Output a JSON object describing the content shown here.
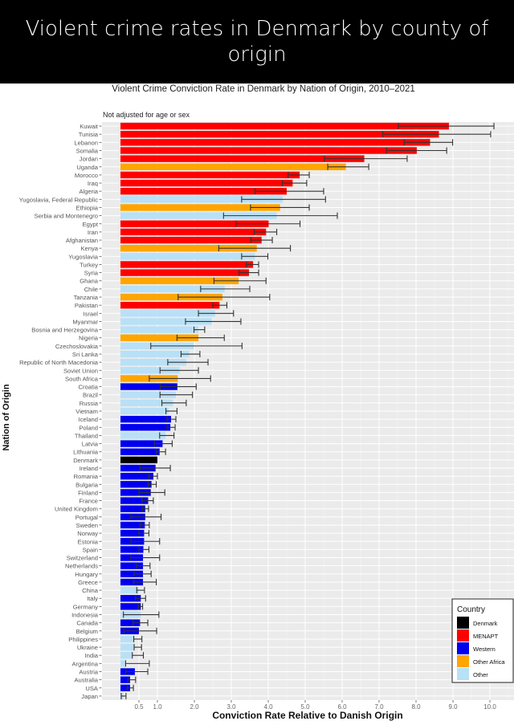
{
  "header": {
    "title": "Violent crime rates in Denmark by county of origin"
  },
  "chart_data": {
    "type": "bar",
    "orientation": "horizontal",
    "title": "Violent Crime Conviction Rate in Denmark by Nation of Origin, 2010–2021",
    "subtitle": "Not adjusted for age or sex",
    "xlabel": "Conviction Rate Relative to Danish Origin",
    "ylabel": "Nation of Origin",
    "xticks": [
      0.5,
      1.0,
      2.0,
      3.0,
      4.0,
      5.0,
      6.0,
      7.0,
      8.0,
      9.0,
      10.0
    ],
    "xtick_labels": [
      "0.5",
      "1.0",
      "2.0",
      "3.0",
      "4.0",
      "5.0",
      "6.0",
      "7.0",
      "8.0",
      "9.0",
      "10.0"
    ],
    "xlim": [
      -0.5,
      10.65
    ],
    "grid": true,
    "error_bars": true,
    "legend": {
      "title": "Country",
      "placement": "bottom-right",
      "entries": [
        {
          "name": "Denmark",
          "color": "#000000"
        },
        {
          "name": "MENAPT",
          "color": "#ff0000"
        },
        {
          "name": "Western",
          "color": "#0000ee"
        },
        {
          "name": "Other Africa",
          "color": "#ffa500"
        },
        {
          "name": "Other",
          "color": "#b8e0f6"
        }
      ]
    },
    "data": [
      {
        "country": "Kuwait",
        "group": "MENAPT",
        "value": 8.89,
        "low": 7.52,
        "high": 10.11
      },
      {
        "country": "Tunisia",
        "group": "MENAPT",
        "value": 8.62,
        "low": 7.1,
        "high": 10.02
      },
      {
        "country": "Lebanon",
        "group": "MENAPT",
        "value": 8.38,
        "low": 7.68,
        "high": 8.99
      },
      {
        "country": "Somalia",
        "group": "MENAPT",
        "value": 8.02,
        "low": 7.2,
        "high": 8.83
      },
      {
        "country": "Jordan",
        "group": "MENAPT",
        "value": 6.6,
        "low": 5.52,
        "high": 7.76
      },
      {
        "country": "Uganda",
        "group": "Other Africa",
        "value": 6.1,
        "low": 5.61,
        "high": 6.72
      },
      {
        "country": "Morocco",
        "group": "MENAPT",
        "value": 4.85,
        "low": 4.54,
        "high": 5.11
      },
      {
        "country": "Iraq",
        "group": "MENAPT",
        "value": 4.66,
        "low": 4.38,
        "high": 5.04
      },
      {
        "country": "Algeria",
        "group": "MENAPT",
        "value": 4.5,
        "low": 3.64,
        "high": 5.5
      },
      {
        "country": "Yugoslavia, Federal Republic",
        "group": "Other",
        "value": 4.39,
        "low": 3.28,
        "high": 5.55
      },
      {
        "country": "Ethiopia",
        "group": "Other Africa",
        "value": 4.32,
        "low": 3.52,
        "high": 5.11
      },
      {
        "country": "Serbia and Montenegro",
        "group": "Other",
        "value": 4.23,
        "low": 2.79,
        "high": 5.87
      },
      {
        "country": "Egypt",
        "group": "MENAPT",
        "value": 4.01,
        "low": 3.13,
        "high": 4.86
      },
      {
        "country": "Iran",
        "group": "MENAPT",
        "value": 3.94,
        "low": 3.62,
        "high": 4.23
      },
      {
        "country": "Afghanistan",
        "group": "MENAPT",
        "value": 3.82,
        "low": 3.53,
        "high": 4.11
      },
      {
        "country": "Kenya",
        "group": "Other Africa",
        "value": 3.69,
        "low": 2.66,
        "high": 4.6
      },
      {
        "country": "Yugoslavia",
        "group": "Other",
        "value": 3.64,
        "low": 3.28,
        "high": 3.99
      },
      {
        "country": "Turkey",
        "group": "MENAPT",
        "value": 3.59,
        "low": 3.41,
        "high": 3.74
      },
      {
        "country": "Syria",
        "group": "MENAPT",
        "value": 3.48,
        "low": 3.21,
        "high": 3.74
      },
      {
        "country": "Ghana",
        "group": "Other Africa",
        "value": 3.2,
        "low": 2.53,
        "high": 3.94
      },
      {
        "country": "Chile",
        "group": "Other",
        "value": 2.82,
        "low": 2.17,
        "high": 3.5
      },
      {
        "country": "Tanzania",
        "group": "Other Africa",
        "value": 2.76,
        "low": 1.56,
        "high": 4.04
      },
      {
        "country": "Pakistan",
        "group": "MENAPT",
        "value": 2.68,
        "low": 2.5,
        "high": 2.88
      },
      {
        "country": "Israel",
        "group": "Other",
        "value": 2.56,
        "low": 2.11,
        "high": 3.06
      },
      {
        "country": "Myanmar",
        "group": "Other",
        "value": 2.47,
        "low": 1.76,
        "high": 3.26
      },
      {
        "country": "Bosnia and Herzegovina",
        "group": "Other",
        "value": 2.11,
        "low": 1.99,
        "high": 2.28
      },
      {
        "country": "Nigeria",
        "group": "Other Africa",
        "value": 2.11,
        "low": 1.53,
        "high": 2.81
      },
      {
        "country": "Czechoslovakia",
        "group": "Other",
        "value": 1.99,
        "low": 0.82,
        "high": 3.29
      },
      {
        "country": "Sri Lanka",
        "group": "Other",
        "value": 1.86,
        "low": 1.64,
        "high": 2.15
      },
      {
        "country": "Republic of North Macedonia",
        "group": "Other",
        "value": 1.78,
        "low": 1.28,
        "high": 2.37
      },
      {
        "country": "Soviet Union",
        "group": "Other",
        "value": 1.6,
        "low": 1.07,
        "high": 2.11
      },
      {
        "country": "South Africa",
        "group": "Other Africa",
        "value": 1.55,
        "low": 0.78,
        "high": 2.44
      },
      {
        "country": "Croatia",
        "group": "Western",
        "value": 1.54,
        "low": 1.08,
        "high": 2.05
      },
      {
        "country": "Brazil",
        "group": "Other",
        "value": 1.5,
        "low": 1.07,
        "high": 1.95
      },
      {
        "country": "Russia",
        "group": "Other",
        "value": 1.42,
        "low": 1.12,
        "high": 1.78
      },
      {
        "country": "Vietnam",
        "group": "Other",
        "value": 1.3,
        "low": 1.23,
        "high": 1.53
      },
      {
        "country": "Iceland",
        "group": "Western",
        "value": 1.37,
        "low": 1.26,
        "high": 1.5
      },
      {
        "country": "Poland",
        "group": "Western",
        "value": 1.35,
        "low": 1.26,
        "high": 1.48
      },
      {
        "country": "Thailand",
        "group": "Other",
        "value": 1.22,
        "low": 1.06,
        "high": 1.45
      },
      {
        "country": "Latvia",
        "group": "Western",
        "value": 1.14,
        "low": 0.92,
        "high": 1.4
      },
      {
        "country": "Lithuania",
        "group": "Western",
        "value": 1.06,
        "low": 0.97,
        "high": 1.22
      },
      {
        "country": "Denmark",
        "group": "Denmark",
        "value": 1.0,
        "low": null,
        "high": null
      },
      {
        "country": "Ireland",
        "group": "Western",
        "value": 0.95,
        "low": 0.53,
        "high": 1.35
      },
      {
        "country": "Romania",
        "group": "Western",
        "value": 0.89,
        "low": 0.77,
        "high": 1.0
      },
      {
        "country": "Bulgaria",
        "group": "Western",
        "value": 0.84,
        "low": 0.75,
        "high": 0.97
      },
      {
        "country": "Finland",
        "group": "Western",
        "value": 0.82,
        "low": 0.5,
        "high": 1.2
      },
      {
        "country": "France",
        "group": "Western",
        "value": 0.75,
        "low": 0.58,
        "high": 0.89
      },
      {
        "country": "United Kingdom",
        "group": "Western",
        "value": 0.67,
        "low": 0.59,
        "high": 0.76
      },
      {
        "country": "Portugal",
        "group": "Western",
        "value": 0.67,
        "low": 0.28,
        "high": 1.1
      },
      {
        "country": "Sweden",
        "group": "Western",
        "value": 0.66,
        "low": 0.53,
        "high": 0.78
      },
      {
        "country": "Norway",
        "group": "Western",
        "value": 0.64,
        "low": 0.5,
        "high": 0.77
      },
      {
        "country": "Estonia",
        "group": "Western",
        "value": 0.64,
        "low": 0.28,
        "high": 1.06
      },
      {
        "country": "Spain",
        "group": "Western",
        "value": 0.62,
        "low": 0.5,
        "high": 0.77
      },
      {
        "country": "Switzerland",
        "group": "Western",
        "value": 0.61,
        "low": 0.28,
        "high": 1.06
      },
      {
        "country": "Netherlands",
        "group": "Western",
        "value": 0.61,
        "low": 0.43,
        "high": 0.8
      },
      {
        "country": "Hungary",
        "group": "Western",
        "value": 0.61,
        "low": 0.37,
        "high": 0.83
      },
      {
        "country": "Greece",
        "group": "Western",
        "value": 0.61,
        "low": 0.35,
        "high": 0.97
      },
      {
        "country": "China",
        "group": "Other",
        "value": 0.5,
        "low": 0.44,
        "high": 0.65
      },
      {
        "country": "Italy",
        "group": "Western",
        "value": 0.55,
        "low": 0.41,
        "high": 0.68
      },
      {
        "country": "Germany",
        "group": "Western",
        "value": 0.55,
        "low": 0.48,
        "high": 0.6
      },
      {
        "country": "Indonesia",
        "group": "Other",
        "value": 0.55,
        "low": 0.08,
        "high": 1.04
      },
      {
        "country": "Canada",
        "group": "Western",
        "value": 0.53,
        "low": 0.34,
        "high": 0.74
      },
      {
        "country": "Belgium",
        "group": "Western",
        "value": 0.5,
        "low": 0.09,
        "high": 0.98
      },
      {
        "country": "Philippines",
        "group": "Other",
        "value": 0.37,
        "low": 0.36,
        "high": 0.58
      },
      {
        "country": "Ukraine",
        "group": "Other",
        "value": 0.37,
        "low": 0.37,
        "high": 0.57
      },
      {
        "country": "India",
        "group": "Other",
        "value": 0.33,
        "low": 0.32,
        "high": 0.62
      },
      {
        "country": "Argentina",
        "group": "Other",
        "value": 0.15,
        "low": 0.14,
        "high": 0.78
      },
      {
        "country": "Austria",
        "group": "Western",
        "value": 0.39,
        "low": 0.15,
        "high": 0.74
      },
      {
        "country": "Australia",
        "group": "Western",
        "value": 0.26,
        "low": 0.2,
        "high": 0.41
      },
      {
        "country": "USA",
        "group": "Western",
        "value": 0.26,
        "low": 0.18,
        "high": 0.35
      },
      {
        "country": "Japan",
        "group": "Other",
        "value": 0.08,
        "low": 0.02,
        "high": 0.15
      }
    ]
  }
}
